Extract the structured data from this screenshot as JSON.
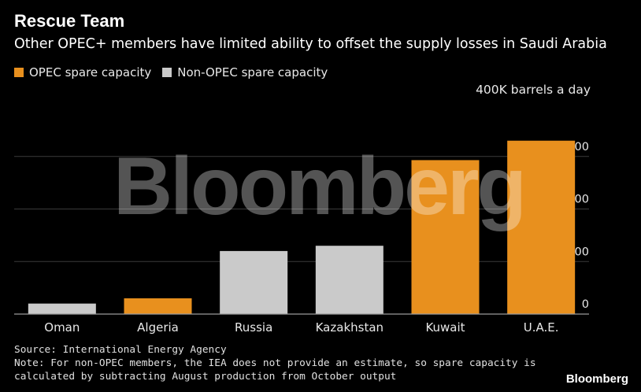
{
  "header": {
    "title": "Rescue Team",
    "subtitle": "Other OPEC+ members have limited ability to offset the supply losses in Saudi Arabia"
  },
  "legend": {
    "items": [
      {
        "label": "OPEC spare capacity",
        "color": "#E8901E"
      },
      {
        "label": "Non-OPEC spare capacity",
        "color": "#CACACA"
      }
    ]
  },
  "unit_label": "400K barrels a day",
  "watermark": "Bloomberg",
  "footer": {
    "source": "Source: International Energy Agency",
    "note_line1": "Note: For non-OPEC members, the IEA does not provide an estimate, so spare capacity is",
    "note_line2": "calculated by subtracting August production from October output"
  },
  "brand": "Bloomberg",
  "chart_data": {
    "type": "bar",
    "categories": [
      "Oman",
      "Algeria",
      "Russia",
      "Kazakhstan",
      "Kuwait",
      "U.A.E."
    ],
    "values": [
      20,
      30,
      120,
      130,
      293,
      330
    ],
    "groups": [
      "Non-OPEC",
      "OPEC",
      "Non-OPEC",
      "Non-OPEC",
      "OPEC",
      "OPEC"
    ],
    "ylim": [
      0,
      400
    ],
    "yticks": [
      0,
      100,
      200,
      300
    ],
    "colors": {
      "OPEC": "#E8901E",
      "Non-OPEC": "#CACACA",
      "grid": "#3A3A3A"
    },
    "grid": true
  }
}
